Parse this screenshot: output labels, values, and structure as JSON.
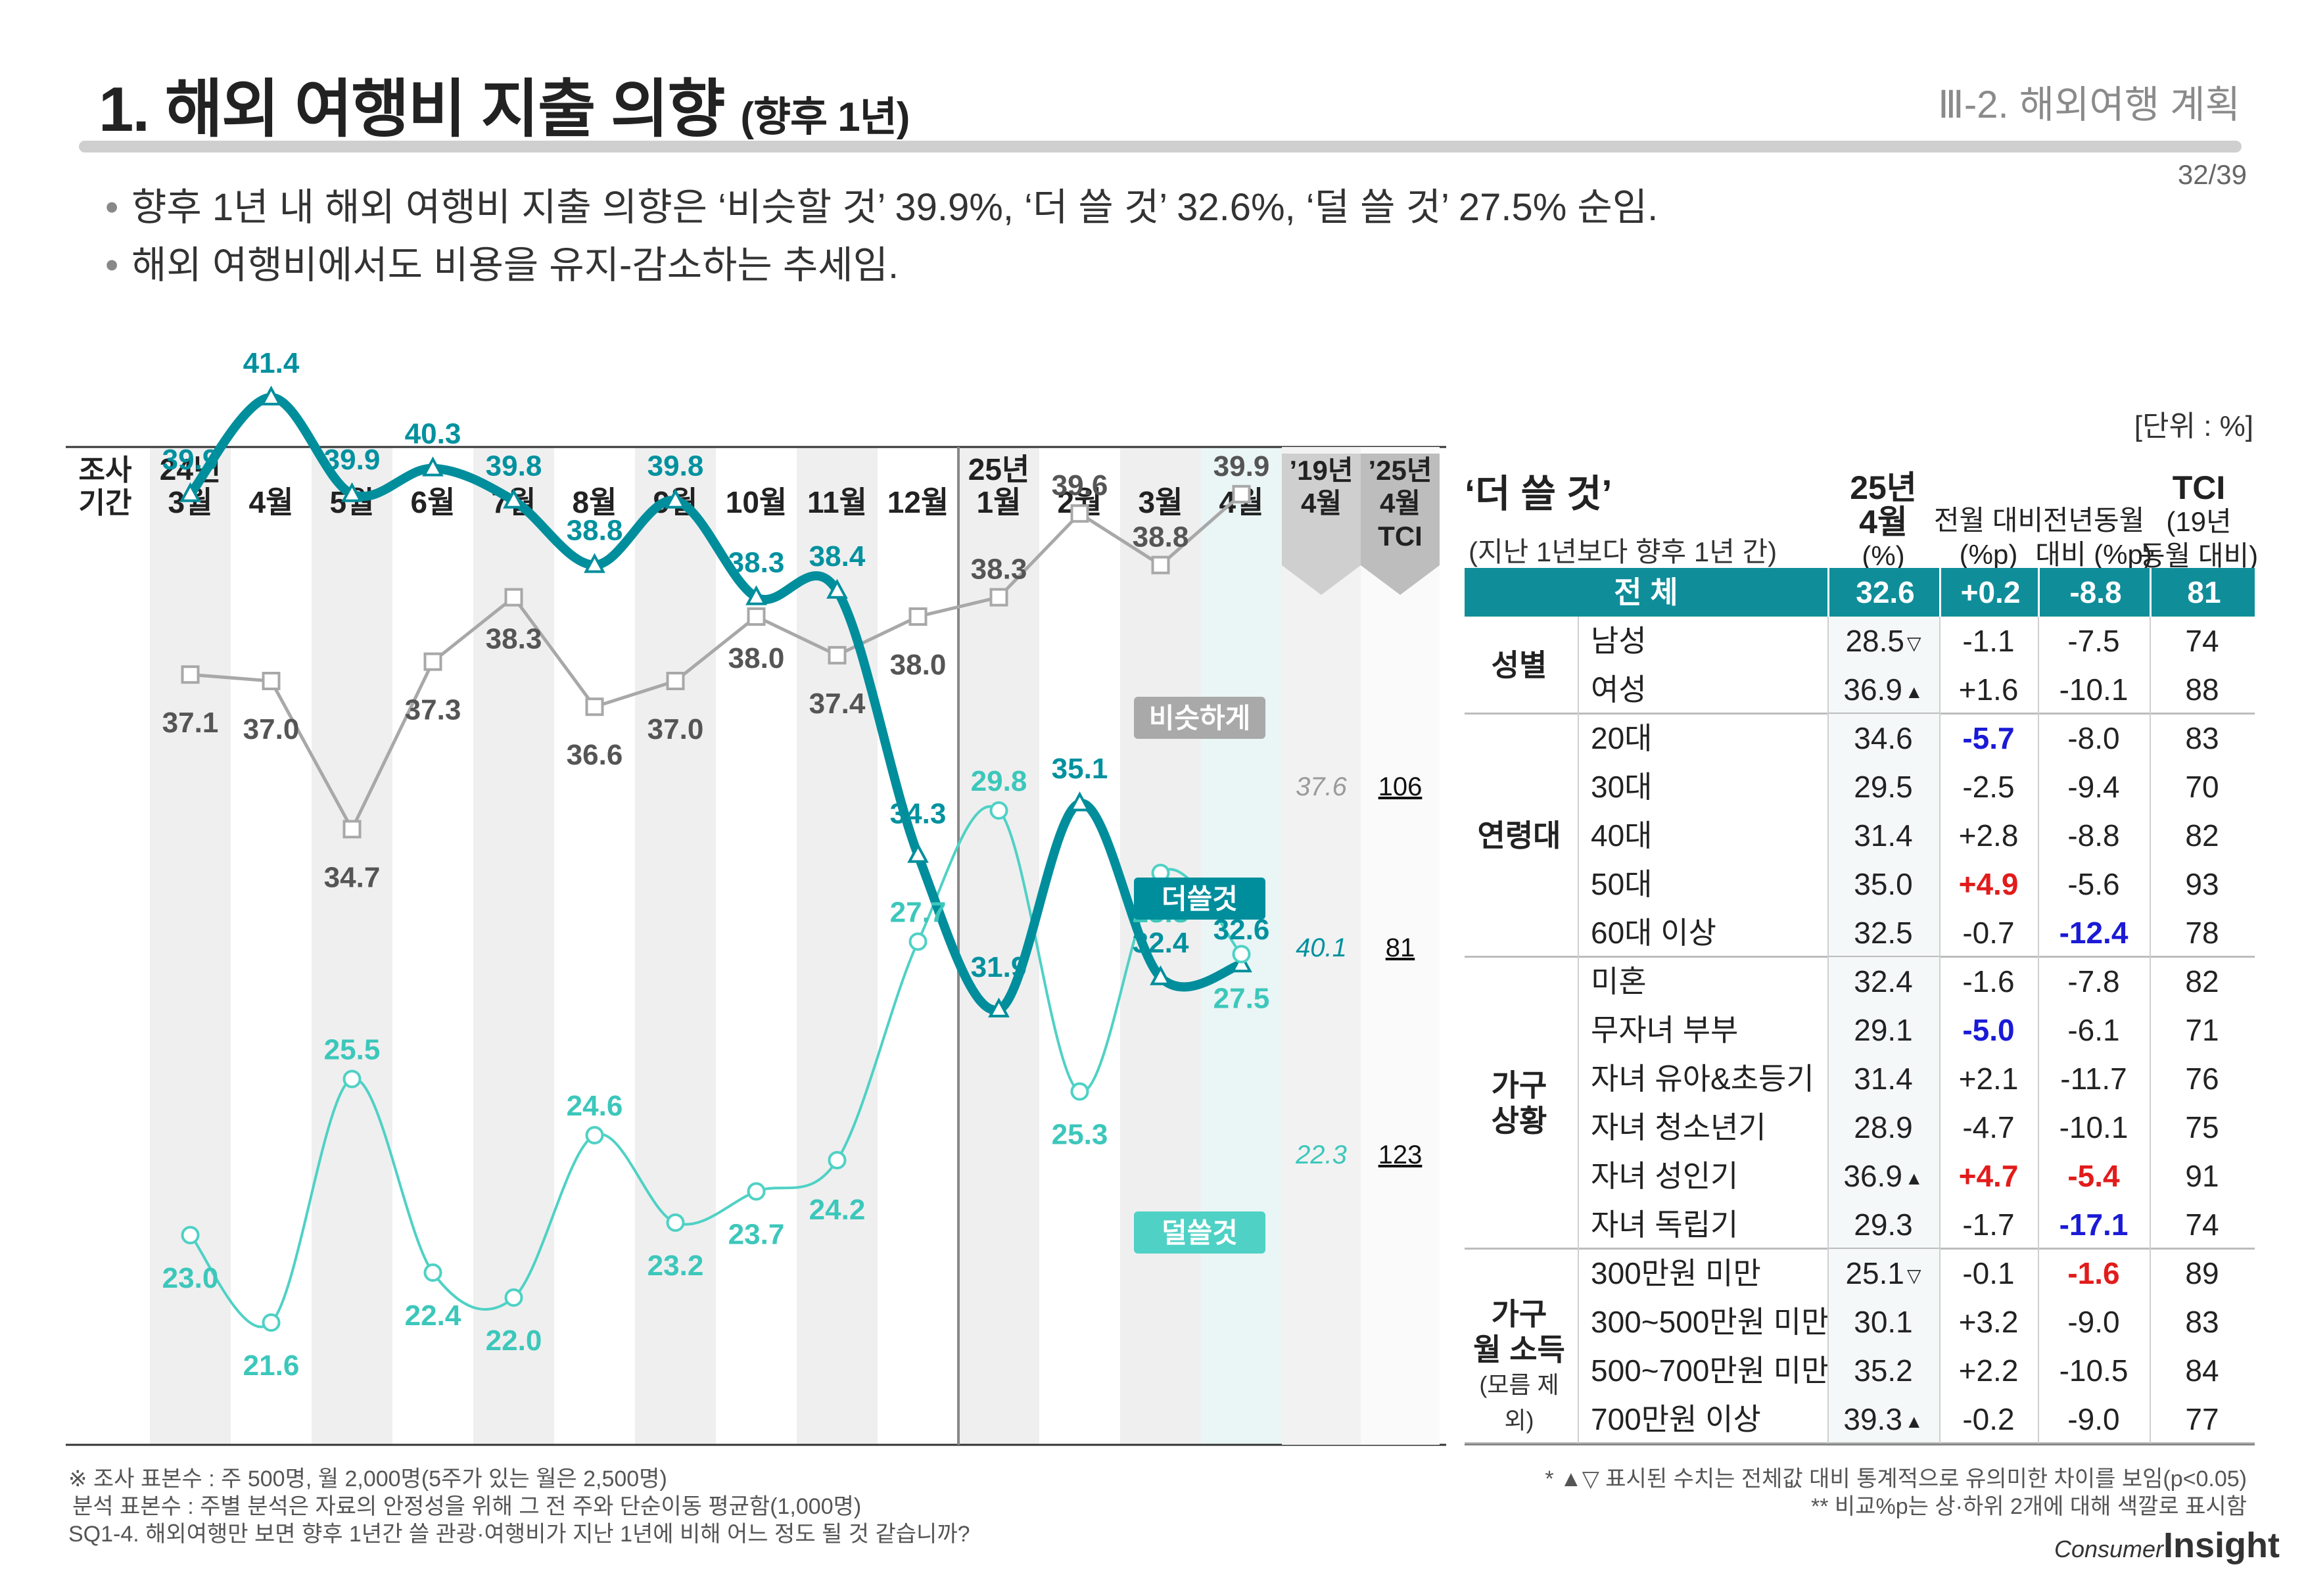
{
  "header": {
    "title": "1. 해외 여행비 지출 의향",
    "title_suffix": "(향후 1년)",
    "section": "Ⅲ-2. 해외여행 계획",
    "page": "32/39"
  },
  "bullets": [
    "향후 1년 내 해외 여행비 지출 의향은 ‘비슷할 것’ 39.9%, ‘더 쓸 것’ 32.6%, ‘덜 쓸 것’ 27.5% 순임.",
    "해외 여행비에서도 비용을 유지-감소하는 추세임."
  ],
  "unit": "[단위 : %]",
  "chart_data": {
    "type": "line",
    "row_header": "조사\n기간",
    "categories": [
      "24년\n3월",
      "4월",
      "5월",
      "6월",
      "7월",
      "8월",
      "9월",
      "10월",
      "11월",
      "12월",
      "25년\n1월",
      "2월",
      "3월",
      "4월"
    ],
    "series": [
      {
        "name": "비슷하게",
        "color": "#a8a8a8",
        "label_color": "#555555",
        "marker": "square",
        "values": [
          37.1,
          37.0,
          34.7,
          37.3,
          38.3,
          36.6,
          37.0,
          38.0,
          37.4,
          38.0,
          38.3,
          39.6,
          38.8,
          39.9
        ]
      },
      {
        "name": "더쓸것",
        "color": "#008e9c",
        "label_color": "#00919f",
        "marker": "triangle",
        "values": [
          39.9,
          41.4,
          39.9,
          40.3,
          39.8,
          38.8,
          39.8,
          38.3,
          38.4,
          34.3,
          31.9,
          35.1,
          32.4,
          32.6
        ]
      },
      {
        "name": "덜쓸것",
        "color": "#4fd1c5",
        "label_color": "#3cc7bb",
        "marker": "circle",
        "values": [
          23.0,
          21.6,
          25.5,
          22.4,
          22.0,
          24.6,
          23.2,
          23.7,
          24.2,
          27.7,
          29.8,
          25.3,
          28.8,
          27.5
        ]
      }
    ],
    "comparison_columns": [
      {
        "header": "’19년\n4월",
        "values": [
          "37.6",
          "40.1",
          "22.3"
        ]
      },
      {
        "header": "’25년\n4월\nTCI",
        "values": [
          "106",
          "81",
          "123"
        ]
      }
    ]
  },
  "table": {
    "title": "‘더 쓸 것’",
    "subtitle": "(지난 1년보다 향후 1년 간)",
    "columns": [
      "25년\n4월\n(%)",
      "전월 대비\n(%p)",
      "전년동월\n대비 (%p)",
      "TCI\n(19년\n동월 대비)"
    ],
    "total": {
      "label": "전   체",
      "pct": "32.6",
      "mom": "+0.2",
      "yoy": "-8.8",
      "tci": "81"
    },
    "groups": [
      {
        "name": "성별",
        "sub": "",
        "rows": [
          {
            "label": "남성",
            "pct": "28.5",
            "sig": "▽",
            "mom": "-1.1",
            "yoy": "-7.5",
            "tci": "74"
          },
          {
            "label": "여성",
            "pct": "36.9",
            "sig": "▲",
            "mom": "+1.6",
            "yoy": "-10.1",
            "tci": "88"
          }
        ]
      },
      {
        "name": "연령대",
        "sub": "",
        "rows": [
          {
            "label": "20대",
            "pct": "34.6",
            "sig": "",
            "mom": "-5.7",
            "mom_color": "#1a1ad6",
            "yoy": "-8.0",
            "tci": "83"
          },
          {
            "label": "30대",
            "pct": "29.5",
            "sig": "",
            "mom": "-2.5",
            "yoy": "-9.4",
            "tci": "70"
          },
          {
            "label": "40대",
            "pct": "31.4",
            "sig": "",
            "mom": "+2.8",
            "yoy": "-8.8",
            "tci": "82"
          },
          {
            "label": "50대",
            "pct": "35.0",
            "sig": "",
            "mom": "+4.9",
            "mom_color": "#e21b1b",
            "yoy": "-5.6",
            "tci": "93"
          },
          {
            "label": "60대 이상",
            "pct": "32.5",
            "sig": "",
            "mom": "-0.7",
            "yoy": "-12.4",
            "yoy_color": "#1a1ad6",
            "tci": "78"
          }
        ]
      },
      {
        "name": "가구\n상황",
        "sub": "",
        "rows": [
          {
            "label": "미혼",
            "pct": "32.4",
            "sig": "",
            "mom": "-1.6",
            "yoy": "-7.8",
            "tci": "82"
          },
          {
            "label": "무자녀 부부",
            "pct": "29.1",
            "sig": "",
            "mom": "-5.0",
            "mom_color": "#1a1ad6",
            "yoy": "-6.1",
            "tci": "71"
          },
          {
            "label": "자녀 유아&초등기",
            "pct": "31.4",
            "sig": "",
            "mom": "+2.1",
            "yoy": "-11.7",
            "tci": "76"
          },
          {
            "label": "자녀 청소년기",
            "pct": "28.9",
            "sig": "",
            "mom": "-4.7",
            "yoy": "-10.1",
            "tci": "75"
          },
          {
            "label": "자녀 성인기",
            "pct": "36.9",
            "sig": "▲",
            "mom": "+4.7",
            "mom_color": "#e21b1b",
            "yoy": "-5.4",
            "yoy_color": "#e21b1b",
            "tci": "91"
          },
          {
            "label": "자녀 독립기",
            "pct": "29.3",
            "sig": "",
            "mom": "-1.7",
            "yoy": "-17.1",
            "yoy_color": "#1a1ad6",
            "tci": "74"
          }
        ]
      },
      {
        "name": "가구\n월 소득",
        "sub": "(모름 제외)",
        "rows": [
          {
            "label": "300만원 미만",
            "pct": "25.1",
            "sig": "▽",
            "mom": "-0.1",
            "yoy": "-1.6",
            "yoy_color": "#e21b1b",
            "tci": "89"
          },
          {
            "label": "300~500만원 미만",
            "pct": "30.1",
            "sig": "",
            "mom": "+3.2",
            "yoy": "-9.0",
            "tci": "83"
          },
          {
            "label": "500~700만원 미만",
            "pct": "35.2",
            "sig": "",
            "mom": "+2.2",
            "yoy": "-10.5",
            "tci": "84"
          },
          {
            "label": "700만원 이상",
            "pct": "39.3",
            "sig": "▲",
            "mom": "-0.2",
            "yoy": "-9.0",
            "tci": "77"
          }
        ]
      }
    ]
  },
  "footnotes": {
    "left": [
      "※ 조사 표본수 : 주 500명, 월 2,000명(5주가 있는 월은 2,500명)",
      "분석 표본수 : 주별 분석은 자료의 안정성을 위해 그 전 주와 단순이동 평균함(1,000명)",
      "SQ1-4. 해외여행만 보면 향후 1년간 쓸 관광·여행비가 지난 1년에 비해 어느 정도 될 것 같습니까?"
    ],
    "right": [
      "* ▲▽ 표시된 수치는 전체값 대비 통계적으로 유의미한 차이를 보임(p<0.05)",
      "** 비교%p는 상·하위 2개에 대해 색깔로 표시함"
    ]
  },
  "logo": {
    "top": "Consumer",
    "bottom": "Insight"
  }
}
